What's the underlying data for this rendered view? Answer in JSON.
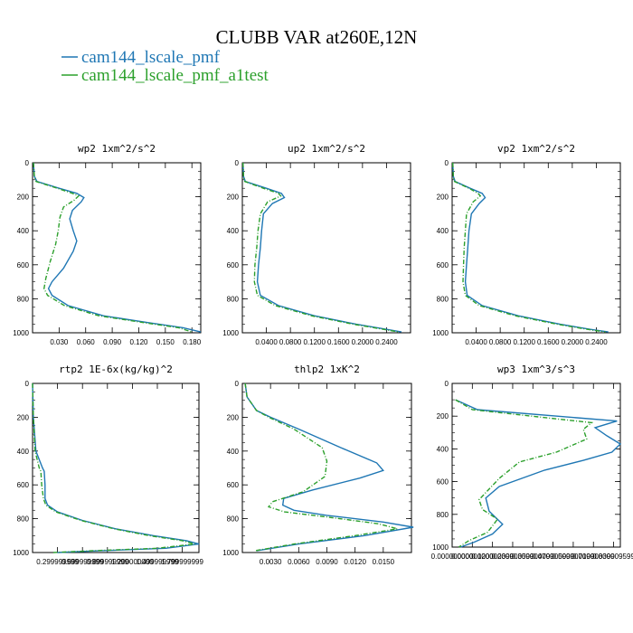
{
  "figure": {
    "title": "CLUBB VAR at260E,12N",
    "legend": [
      {
        "label": "cam144_lscale_pmf",
        "color": "#1f77b4",
        "dash": false
      },
      {
        "label": "cam144_lscale_pmf_a1test",
        "color": "#2ca02c",
        "dash": true
      }
    ]
  },
  "chart_data": [
    {
      "type": "line",
      "title": "wp2  1xm^2/s^2",
      "xlim": [
        0,
        0.19
      ],
      "ylim": [
        1000,
        0
      ],
      "xticks": [
        0.03,
        0.06,
        0.09,
        0.12,
        0.15,
        0.18
      ],
      "xtick_labels": [
        "0.030",
        "0.060",
        "0.090",
        "0.120",
        "0.150",
        "0.180"
      ],
      "yticks": [
        0,
        200,
        400,
        600,
        800,
        1000
      ],
      "ytick_labels": [
        "0",
        "200",
        "400",
        "600",
        "800",
        "1000"
      ],
      "series": [
        {
          "name": "cam144_lscale_pmf",
          "x": [
            0.001,
            0.002,
            0.005,
            0.03,
            0.05,
            0.058,
            0.055,
            0.045,
            0.042,
            0.046,
            0.05,
            0.046,
            0.035,
            0.022,
            0.018,
            0.022,
            0.04,
            0.08,
            0.13,
            0.17,
            0.19
          ],
          "y": [
            0,
            80,
            110,
            150,
            180,
            205,
            230,
            280,
            330,
            400,
            460,
            520,
            620,
            700,
            740,
            780,
            840,
            900,
            940,
            970,
            995
          ]
        },
        {
          "name": "cam144_lscale_pmf_a1test",
          "x": [
            0.001,
            0.002,
            0.004,
            0.028,
            0.045,
            0.052,
            0.047,
            0.035,
            0.031,
            0.029,
            0.026,
            0.02,
            0.015,
            0.013,
            0.017,
            0.036,
            0.075,
            0.125,
            0.165,
            0.18
          ],
          "y": [
            0,
            80,
            110,
            150,
            180,
            195,
            220,
            260,
            320,
            400,
            480,
            580,
            680,
            740,
            780,
            840,
            900,
            940,
            970,
            995
          ]
        }
      ]
    },
    {
      "type": "line",
      "title": "up2  1xm^2/s^2",
      "xlim": [
        0,
        0.28
      ],
      "ylim": [
        1000,
        0
      ],
      "xticks": [
        0.04,
        0.08,
        0.12,
        0.16,
        0.2,
        0.24
      ],
      "xtick_labels": [
        "0.0400",
        "0.0800",
        "0.1200",
        "0.1600",
        "0.2000",
        "0.2400"
      ],
      "yticks": [
        0,
        200,
        400,
        600,
        800,
        1000
      ],
      "ytick_labels": [
        "0",
        "200",
        "400",
        "600",
        "800",
        "1000"
      ],
      "series": [
        {
          "name": "cam144_lscale_pmf",
          "x": [
            0.001,
            0.002,
            0.005,
            0.04,
            0.065,
            0.07,
            0.05,
            0.035,
            0.032,
            0.03,
            0.027,
            0.025,
            0.03,
            0.06,
            0.12,
            0.19,
            0.24,
            0.265
          ],
          "y": [
            0,
            80,
            110,
            150,
            180,
            205,
            240,
            300,
            400,
            500,
            600,
            700,
            780,
            840,
            900,
            950,
            980,
            995
          ]
        },
        {
          "name": "cam144_lscale_pmf_a1test",
          "x": [
            0.001,
            0.002,
            0.004,
            0.035,
            0.06,
            0.064,
            0.042,
            0.03,
            0.026,
            0.024,
            0.021,
            0.02,
            0.025,
            0.055,
            0.115,
            0.185,
            0.235,
            0.26
          ],
          "y": [
            0,
            80,
            110,
            150,
            180,
            195,
            230,
            300,
            400,
            500,
            600,
            700,
            780,
            840,
            900,
            950,
            980,
            995
          ]
        }
      ]
    },
    {
      "type": "line",
      "title": "vp2  1xm^2/s^2",
      "xlim": [
        0,
        0.28
      ],
      "ylim": [
        1000,
        0
      ],
      "xticks": [
        0.04,
        0.08,
        0.12,
        0.16,
        0.2,
        0.24
      ],
      "xtick_labels": [
        "0.0400",
        "0.0800",
        "0.1200",
        "0.1600",
        "0.2000",
        "0.2400"
      ],
      "yticks": [
        0,
        200,
        400,
        600,
        800,
        1000
      ],
      "ytick_labels": [
        "0",
        "200",
        "400",
        "600",
        "800",
        "1000"
      ],
      "series": [
        {
          "name": "cam144_lscale_pmf",
          "x": [
            0.001,
            0.002,
            0.005,
            0.03,
            0.05,
            0.055,
            0.045,
            0.032,
            0.028,
            0.026,
            0.024,
            0.022,
            0.025,
            0.05,
            0.11,
            0.18,
            0.23,
            0.26
          ],
          "y": [
            0,
            80,
            110,
            150,
            180,
            205,
            240,
            300,
            400,
            500,
            600,
            700,
            780,
            840,
            900,
            950,
            980,
            995
          ]
        },
        {
          "name": "cam144_lscale_pmf_a1test",
          "x": [
            0.001,
            0.002,
            0.004,
            0.028,
            0.043,
            0.047,
            0.035,
            0.024,
            0.022,
            0.02,
            0.019,
            0.018,
            0.022,
            0.045,
            0.105,
            0.175,
            0.225,
            0.255
          ],
          "y": [
            0,
            80,
            110,
            150,
            180,
            195,
            230,
            300,
            400,
            500,
            600,
            700,
            780,
            840,
            900,
            950,
            980,
            995
          ]
        }
      ]
    },
    {
      "type": "line",
      "title": "rtp2  1E-6x(kg/kg)^2",
      "xlim": [
        0,
        2.0
      ],
      "ylim": [
        1000,
        0
      ],
      "xticks": [
        0.3,
        0.6,
        0.9,
        1.2,
        1.5,
        1.8
      ],
      "xtick_labels": [
        "0.299999999",
        "0.599999999",
        "0.899999999",
        "1.200000000",
        "1.499999999",
        "1.799999999"
      ],
      "yticks": [
        0,
        200,
        400,
        600,
        800,
        1000
      ],
      "ytick_labels": [
        "0",
        "200",
        "400",
        "600",
        "800",
        "1000"
      ],
      "series": [
        {
          "name": "cam144_lscale_pmf",
          "x": [
            0.0,
            0.01,
            0.04,
            0.12,
            0.14,
            0.15,
            0.15,
            0.18,
            0.3,
            0.6,
            1.0,
            1.45,
            1.85,
            2.0,
            1.6,
            0.8,
            0.3
          ],
          "y": [
            0,
            200,
            400,
            500,
            520,
            600,
            680,
            720,
            760,
            810,
            860,
            900,
            930,
            950,
            975,
            990,
            1000
          ]
        },
        {
          "name": "cam144_lscale_pmf_a1test",
          "x": [
            0.0,
            0.01,
            0.03,
            0.08,
            0.1,
            0.11,
            0.13,
            0.16,
            0.28,
            0.58,
            0.98,
            1.4,
            1.8,
            1.95,
            1.5,
            0.7,
            0.25
          ],
          "y": [
            0,
            200,
            400,
            500,
            520,
            600,
            680,
            720,
            760,
            810,
            860,
            900,
            930,
            950,
            975,
            990,
            1000
          ]
        }
      ]
    },
    {
      "type": "line",
      "title": "thlp2  1xK^2",
      "xlim": [
        0,
        0.018
      ],
      "ylim": [
        1000,
        0
      ],
      "xticks": [
        0.003,
        0.006,
        0.009,
        0.012,
        0.015
      ],
      "xtick_labels": [
        "0.0030",
        "0.0060",
        "0.0090",
        "0.0120",
        "0.0150"
      ],
      "yticks": [
        0,
        200,
        400,
        600,
        800,
        1000
      ],
      "ytick_labels": [
        "0",
        "200",
        "400",
        "600",
        "800",
        "1000"
      ],
      "series": [
        {
          "name": "cam144_lscale_pmf",
          "x": [
            0.0003,
            0.0005,
            0.001,
            0.0015,
            0.003,
            0.006,
            0.0105,
            0.0143,
            0.015,
            0.0125,
            0.0075,
            0.0044,
            0.0043,
            0.0055,
            0.009,
            0.015,
            0.0182,
            0.013,
            0.006,
            0.0015
          ],
          "y": [
            0,
            80,
            120,
            160,
            200,
            270,
            380,
            470,
            515,
            560,
            630,
            680,
            720,
            750,
            780,
            820,
            850,
            900,
            950,
            990
          ]
        },
        {
          "name": "cam144_lscale_pmf_a1test",
          "x": [
            0.0003,
            0.0005,
            0.001,
            0.0015,
            0.0028,
            0.0055,
            0.0085,
            0.009,
            0.0088,
            0.0065,
            0.0032,
            0.0028,
            0.0045,
            0.009,
            0.0145,
            0.0165,
            0.012,
            0.0055,
            0.0013
          ],
          "y": [
            0,
            80,
            120,
            160,
            200,
            270,
            380,
            460,
            550,
            640,
            700,
            730,
            760,
            790,
            830,
            860,
            900,
            950,
            990
          ]
        }
      ]
    },
    {
      "type": "line",
      "title": "wp3  1xm^3/s^3",
      "xlim": [
        0,
        1e-05
      ],
      "ylim": [
        1000,
        0
      ],
      "xticks": [
        0,
        1.2e-06,
        2.4e-06,
        3.6e-06,
        4.8e-06,
        6e-06,
        7.2e-06,
        8.4e-06,
        9.6e-06
      ],
      "xtick_labels": [
        "0.000000000",
        "0.000001200",
        "0.000002399",
        "0.000003599",
        "0.000004799",
        "0.000005999",
        "0.000007199",
        "0.000008399",
        "0.000009599"
      ],
      "yticks": [
        0,
        200,
        400,
        600,
        800,
        1000
      ],
      "ytick_labels": [
        "0",
        "200",
        "400",
        "600",
        "800",
        "1000"
      ],
      "series": [
        {
          "name": "cam144_lscale_pmf",
          "x": [
            2e-07,
            1.5e-06,
            9.8e-06,
            8.5e-06,
            9.2e-06,
            1e-05,
            9.5e-06,
            7.8e-06,
            5.5e-06,
            2.8e-06,
            2e-06,
            2.2e-06,
            3e-06,
            2.4e-06,
            1.3e-06,
            5e-07
          ],
          "y": [
            100,
            160,
            230,
            270,
            320,
            370,
            420,
            470,
            530,
            630,
            700,
            780,
            860,
            920,
            970,
            1000
          ]
        },
        {
          "name": "cam144_lscale_pmf_a1test",
          "x": [
            2e-07,
            1.2e-06,
            6.5e-06,
            8.3e-06,
            7.8e-06,
            8e-06,
            6.2e-06,
            4e-06,
            2.8e-06,
            1.6e-06,
            1.8e-06,
            2.7e-06,
            2.1e-06,
            1e-06,
            4e-07
          ],
          "y": [
            100,
            160,
            220,
            240,
            280,
            340,
            420,
            480,
            580,
            710,
            770,
            830,
            910,
            960,
            1000
          ]
        }
      ]
    }
  ]
}
